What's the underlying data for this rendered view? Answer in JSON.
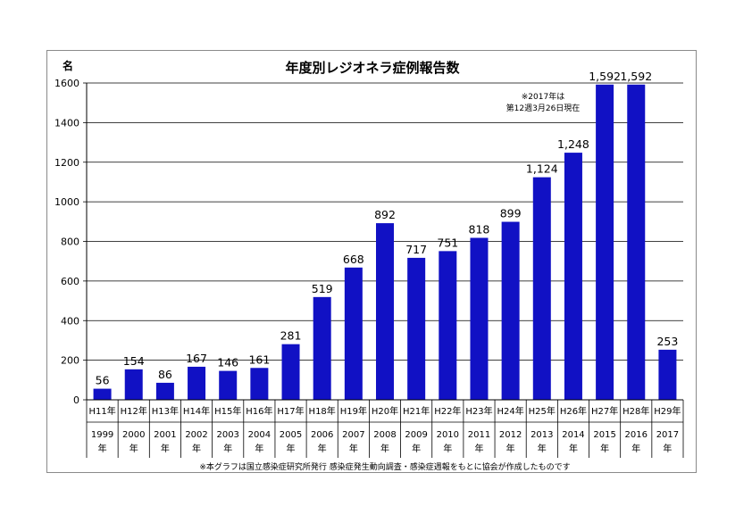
{
  "chart_data": {
    "type": "bar",
    "title": "年度別レジオネラ症例報告数",
    "unit_label": "名",
    "ylim": [
      0,
      1600
    ],
    "yticks": [
      0,
      200,
      400,
      600,
      800,
      1000,
      1200,
      1400,
      1600
    ],
    "grid": true,
    "bar_color": "#1111c4",
    "categories_era": [
      "H11年",
      "H12年",
      "H13年",
      "H14年",
      "H15年",
      "H16年",
      "H17年",
      "H18年",
      "H19年",
      "H20年",
      "H21年",
      "H22年",
      "H23年",
      "H24年",
      "H25年",
      "H26年",
      "H27年",
      "H28年",
      "H29年"
    ],
    "categories_year": [
      "1999",
      "2000",
      "2001",
      "2002",
      "2003",
      "2004",
      "2005",
      "2006",
      "2007",
      "2008",
      "2009",
      "2010",
      "2011",
      "2012",
      "2013",
      "2014",
      "2015",
      "2016",
      "2017"
    ],
    "year_suffix": "年",
    "values": [
      56,
      154,
      86,
      167,
      146,
      161,
      281,
      519,
      668,
      892,
      717,
      751,
      818,
      899,
      1124,
      1248,
      1592,
      1592,
      253
    ],
    "value_labels": [
      "56",
      "154",
      "86",
      "167",
      "146",
      "161",
      "281",
      "519",
      "668",
      "892",
      "717",
      "751",
      "818",
      "899",
      "1,124",
      "1,248",
      "1,592",
      "1,592",
      "253"
    ],
    "highlight_index": 18,
    "highlight_color": "#e0201a",
    "note_lines": [
      "※2017年は",
      "第12週3月26日現在"
    ],
    "footnote": "※本グラフは国立感染症研究所発行 感染症発生動向調査・感染症週報をもとに協会が作成したものです"
  }
}
